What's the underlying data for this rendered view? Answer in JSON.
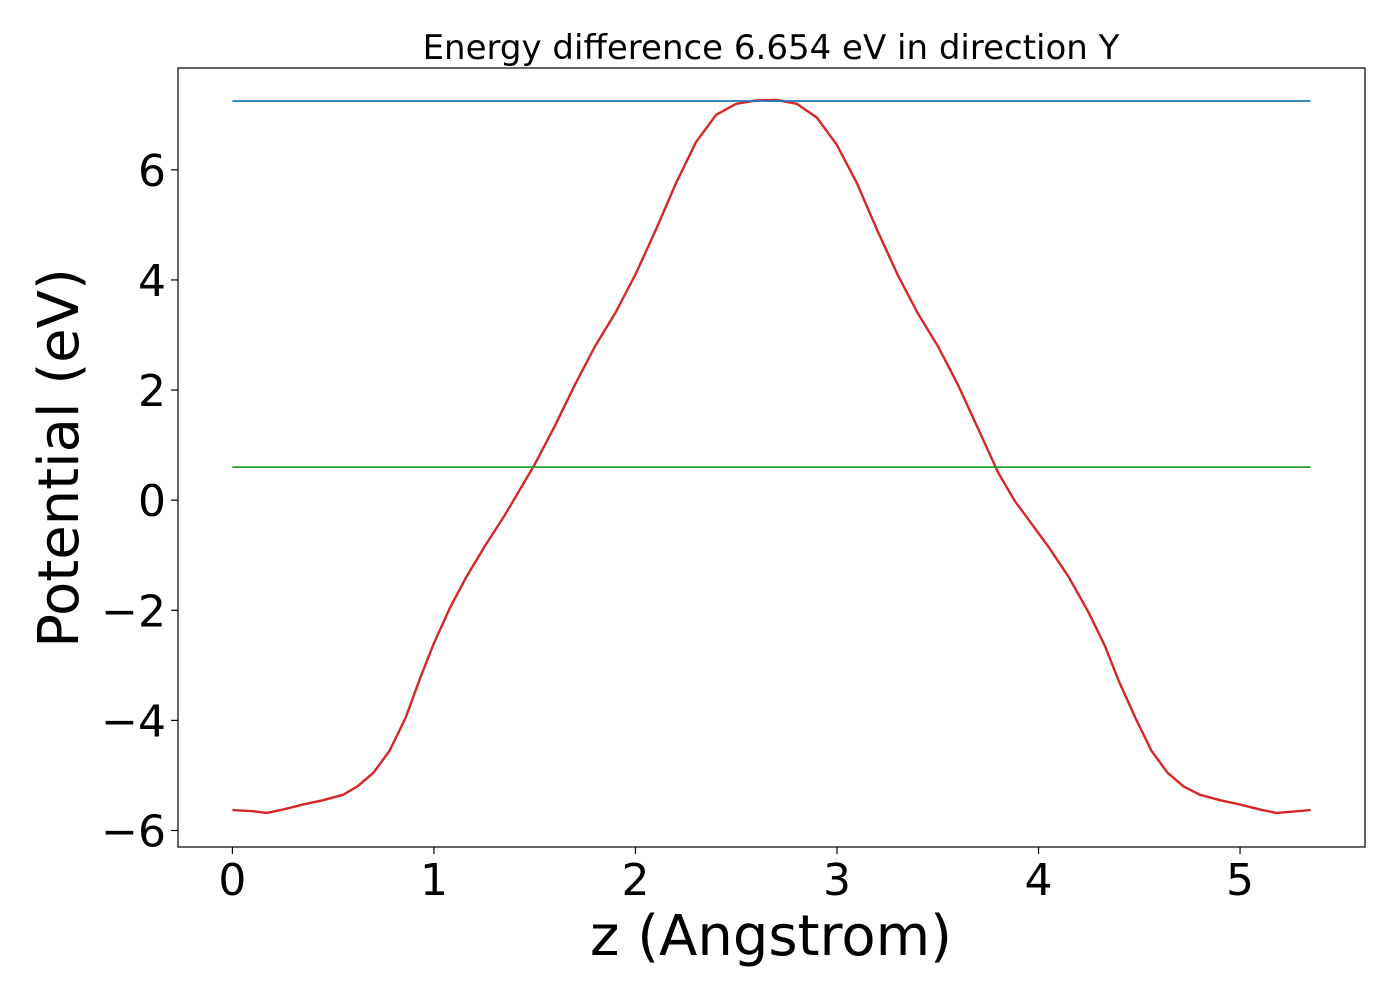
{
  "chart_data": {
    "type": "line",
    "title": "Energy difference 6.654 eV in direction Y",
    "xlabel": "z (Angstrom)",
    "ylabel": "Potential (eV)",
    "xlim": [
      -0.27,
      5.62
    ],
    "ylim": [
      -6.3,
      7.85
    ],
    "xticks": [
      0,
      1,
      2,
      3,
      4,
      5
    ],
    "xtick_labels": [
      "0",
      "1",
      "2",
      "3",
      "4",
      "5"
    ],
    "yticks": [
      -6,
      -4,
      -2,
      0,
      2,
      4,
      6
    ],
    "ytick_labels": [
      "−6",
      "−4",
      "−2",
      "0",
      "2",
      "4",
      "6"
    ],
    "grid": false,
    "series": [
      {
        "color": "#d62728",
        "x": [
          0.0,
          0.1,
          0.17,
          0.25,
          0.35,
          0.45,
          0.55,
          0.62,
          0.7,
          0.78,
          0.86,
          0.93,
          1.0,
          1.08,
          1.16,
          1.25,
          1.35,
          1.42,
          1.5,
          1.6,
          1.7,
          1.8,
          1.9,
          2.0,
          2.1,
          2.2,
          2.3,
          2.4,
          2.5,
          2.6,
          2.7,
          2.8,
          2.9,
          3.0,
          3.1,
          3.2,
          3.3,
          3.4,
          3.5,
          3.6,
          3.7,
          3.8,
          3.88,
          3.95,
          4.05,
          4.15,
          4.25,
          4.33,
          4.4,
          4.48,
          4.56,
          4.64,
          4.72,
          4.8,
          4.9,
          5.0,
          5.1,
          5.18,
          5.25,
          5.35
        ],
        "y": [
          -5.63,
          -5.65,
          -5.68,
          -5.62,
          -5.53,
          -5.45,
          -5.35,
          -5.2,
          -4.95,
          -4.55,
          -3.95,
          -3.25,
          -2.6,
          -1.95,
          -1.4,
          -0.85,
          -0.28,
          0.15,
          0.65,
          1.35,
          2.1,
          2.8,
          3.4,
          4.1,
          4.9,
          5.75,
          6.5,
          7.0,
          7.2,
          7.26,
          7.27,
          7.2,
          6.95,
          6.45,
          5.75,
          4.9,
          4.1,
          3.4,
          2.8,
          2.1,
          1.3,
          0.5,
          0.0,
          -0.35,
          -0.85,
          -1.4,
          -2.05,
          -2.65,
          -3.3,
          -3.95,
          -4.55,
          -4.95,
          -5.2,
          -5.35,
          -5.45,
          -5.53,
          -5.62,
          -5.68,
          -5.66,
          -5.63
        ]
      },
      {
        "color": "#1f77b4",
        "x": [
          0.0,
          5.35
        ],
        "y": [
          7.25,
          7.25
        ]
      },
      {
        "color": "#2ca02c",
        "x": [
          0.0,
          5.35
        ],
        "y": [
          0.6,
          0.6
        ]
      }
    ]
  }
}
